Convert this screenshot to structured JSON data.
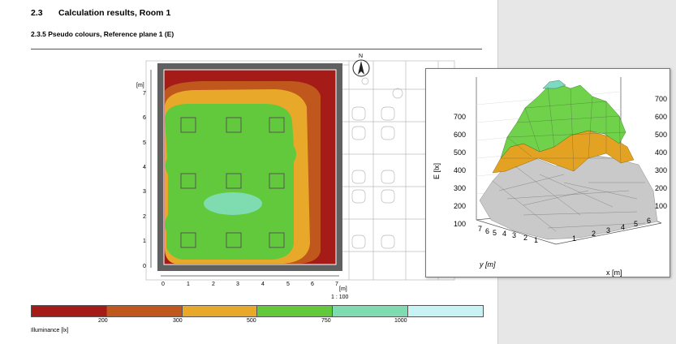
{
  "document": {
    "section_number": "2.3",
    "section_title": "Calculation results, Room 1",
    "subsection_title": "2.3.5 Pseudo colours, Reference plane 1 (E)"
  },
  "floor_plan": {
    "y_unit": "[m]",
    "x_unit": "[m]",
    "y_ticks": [
      "0",
      "1",
      "2",
      "3",
      "4",
      "5",
      "6",
      "7"
    ],
    "x_ticks": [
      "0",
      "1",
      "2",
      "3",
      "4",
      "5",
      "6",
      "7"
    ],
    "scale": "1 : 100",
    "north_label": "N"
  },
  "legend": {
    "label": "Illuminance [lx]",
    "ticks": [
      "200",
      "300",
      "500",
      "750",
      "1000"
    ],
    "colors": [
      "#a51b18",
      "#c0571d",
      "#e8a829",
      "#63c93c",
      "#7edcb0",
      "#c8f2f4"
    ]
  },
  "plot3d": {
    "z_label": "E [lx]",
    "z_ticks": [
      "100",
      "200",
      "300",
      "400",
      "500",
      "600",
      "700"
    ],
    "right_ticks": [
      "100",
      "200",
      "300",
      "400",
      "500",
      "600",
      "700"
    ],
    "y_label": "y [m]",
    "x_label": "x [m]",
    "y_ticks": [
      "7",
      "6",
      "5",
      "4",
      "3",
      "2",
      "1"
    ],
    "x_ticks": [
      "1",
      "2",
      "3",
      "4",
      "5",
      "6"
    ],
    "colors": {
      "green": "#6fd24a",
      "orange": "#e4a222",
      "gray": "#c9c9c9",
      "teal": "#7ed9c2"
    }
  }
}
